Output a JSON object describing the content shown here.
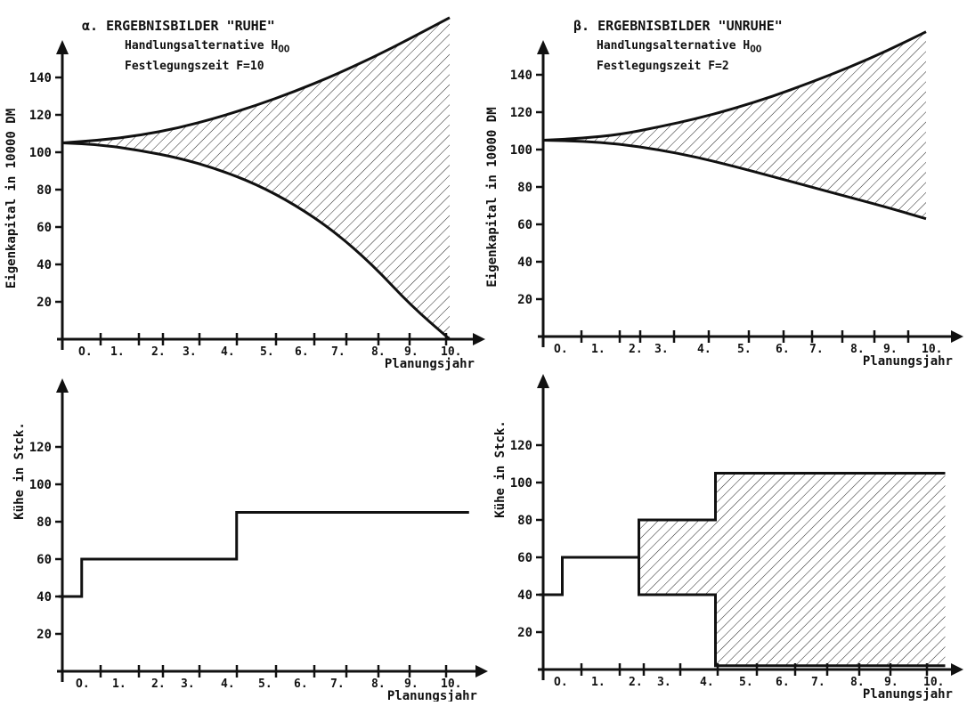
{
  "chart_data": [
    {
      "type": "area",
      "title": "α. ERGEBNISBILDER \"RUHE\"",
      "subtitle_line1": "Handlungsalternative H",
      "subtitle_sub1": "OO",
      "subtitle_line2": "Festlegungszeit F=10",
      "ylabel": "Eigenkapital in 10000 DM",
      "xlabel": "Planungsjahr",
      "x_ticks": [
        "O.",
        "1.",
        "2.",
        "3.",
        "4.",
        "5.",
        "6.",
        "7.",
        "8.",
        "9.",
        "10."
      ],
      "y_ticks": [
        "20",
        "40",
        "60",
        "80",
        "100",
        "120",
        "140"
      ],
      "ylim": [
        0,
        160
      ],
      "x": [
        0,
        1,
        2,
        3,
        4,
        5,
        6,
        7,
        8,
        9,
        10
      ],
      "series": [
        {
          "values": [
            105,
            106.5,
            109,
            113,
            118.5,
            125,
            132.5,
            141,
            150.5,
            161,
            172
          ]
        },
        {
          "values": [
            105,
            104,
            101,
            97,
            91,
            83,
            72,
            58,
            40,
            18,
            0
          ]
        }
      ],
      "hatched_region": "between upper and lower curve"
    },
    {
      "type": "area",
      "title": "β. ERGEBNISBILDER \"UNRUHE\"",
      "subtitle_line1": "Handlungsalternative H",
      "subtitle_sub1": "OO",
      "subtitle_line2": "Festlegungszeit F=2",
      "ylabel": "Eigenkapital in 10000 DM",
      "xlabel": "Planungsjahr",
      "x_ticks": [
        "O.",
        "1.",
        "2.",
        "3.",
        "4.",
        "5.",
        "6.",
        "7.",
        "8.",
        "9.",
        "10."
      ],
      "y_ticks": [
        "20",
        "40",
        "60",
        "80",
        "100",
        "120",
        "140"
      ],
      "ylim": [
        0,
        160
      ],
      "x": [
        0,
        1,
        2,
        3,
        4,
        5,
        6,
        7,
        8,
        9,
        10
      ],
      "series": [
        {
          "values": [
            105,
            106,
            108,
            112,
            116.5,
            122,
            128.5,
            136,
            144,
            153,
            163
          ]
        },
        {
          "values": [
            105,
            104.5,
            103,
            100,
            96,
            91,
            85.5,
            80,
            74.5,
            69,
            63
          ]
        }
      ],
      "hatched_region": "between upper and lower curve"
    },
    {
      "type": "line",
      "ylabel": "Kühe in Stck.",
      "xlabel": "Planungsjahr",
      "x_ticks": [
        "O.",
        "1.",
        "2.",
        "3.",
        "4.",
        "5.",
        "6.",
        "7.",
        "8.",
        "9.",
        "10."
      ],
      "y_ticks": [
        "20",
        "40",
        "60",
        "80",
        "100",
        "120"
      ],
      "ylim": [
        0,
        150
      ],
      "step_x": [
        -0.1,
        0.5,
        0.5,
        4.5,
        4.5,
        10.5
      ],
      "series": [
        {
          "values": [
            40,
            40,
            60,
            60,
            85,
            85
          ]
        }
      ]
    },
    {
      "type": "area",
      "ylabel": "Kühe in Stck.",
      "xlabel": "Planungsjahr",
      "x_ticks": [
        "O.",
        "1.",
        "2.",
        "3.",
        "4.",
        "5.",
        "6.",
        "7.",
        "8.",
        "9.",
        "10."
      ],
      "y_ticks": [
        "20",
        "40",
        "60",
        "80",
        "100",
        "120"
      ],
      "ylim": [
        0,
        150
      ],
      "step_x": [
        -0.1,
        0.5,
        0.5,
        2.5,
        2.5,
        4.5,
        4.5,
        10.5
      ],
      "series": [
        {
          "values": [
            40,
            40,
            60,
            60,
            80,
            80,
            105,
            105
          ]
        },
        {
          "values": [
            40,
            40,
            60,
            60,
            40,
            40,
            2,
            2
          ]
        }
      ],
      "hatched_region": "between upper and lower step line from year 2.5"
    }
  ]
}
